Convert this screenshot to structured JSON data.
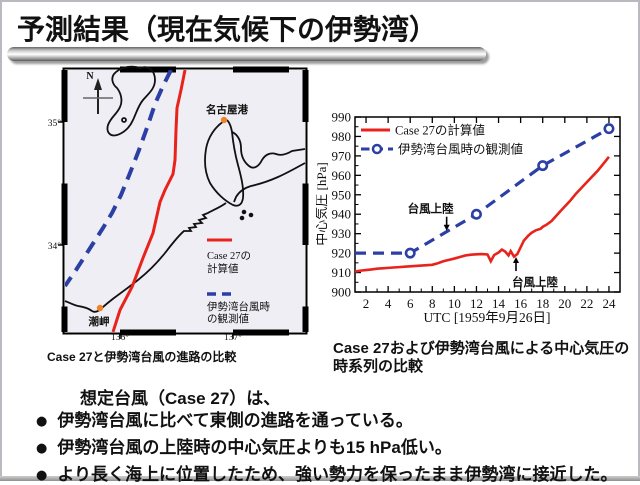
{
  "slide": {
    "title": "予測結果（現在気候下の伊勢湾）",
    "body_heading": "想定台風（Case 27）は、",
    "bullet_glyph": "●",
    "bullets": [
      "伊勢湾台風に比べて東側の進路を通っている。",
      "伊勢湾台風の上陸時の中心気圧よりも15 hPa低い。",
      "より長く海上に位置したため、強い勢力を保ったまま伊勢湾に接近した。"
    ]
  },
  "map": {
    "caption": "Case 27と伊勢湾台風の進路の比較",
    "compass_label": "N",
    "lat_labels": [
      "35°",
      "34°"
    ],
    "lon_labels": [
      "136°",
      "137°"
    ],
    "places": [
      {
        "name": "名古屋港"
      },
      {
        "name": "潮岬"
      }
    ],
    "legend": {
      "case27_line1": "Case 27の",
      "case27_line2": "計算値",
      "observed_line1": "伊勢湾台風時",
      "observed_line2": "の観測値"
    },
    "colors": {
      "case27": "#e8231c",
      "observed": "#2b3fa5",
      "place_marker": "#f08228"
    },
    "tracks": {
      "case27_track": [
        [
          120,
          0
        ],
        [
          116,
          20
        ],
        [
          112,
          38
        ],
        [
          111,
          60
        ],
        [
          110,
          90
        ],
        [
          108,
          104
        ],
        [
          100,
          120
        ],
        [
          95,
          132
        ],
        [
          88,
          163
        ],
        [
          78,
          188
        ],
        [
          67,
          217
        ],
        [
          55,
          240
        ],
        [
          48,
          262
        ]
      ],
      "observed_track": [
        [
          106,
          0
        ],
        [
          98,
          16
        ],
        [
          90,
          34
        ],
        [
          83,
          55
        ],
        [
          74,
          80
        ],
        [
          65,
          103
        ],
        [
          56,
          125
        ],
        [
          47,
          143
        ],
        [
          38,
          158
        ],
        [
          29,
          172
        ],
        [
          20,
          186
        ],
        [
          11,
          200
        ],
        [
          0,
          216
        ]
      ]
    }
  },
  "chart_data": {
    "type": "line",
    "xlabel": "UTC [1959年9月26日]",
    "ylabel": "中心気圧 [hPa]",
    "xlim": [
      1,
      25
    ],
    "ylim": [
      900,
      990
    ],
    "xticks": [
      2,
      4,
      6,
      8,
      10,
      12,
      14,
      16,
      18,
      20,
      22,
      24
    ],
    "yticks": [
      900,
      910,
      920,
      930,
      940,
      950,
      960,
      970,
      980,
      990
    ],
    "grid": false,
    "legend_position": "top-left",
    "series": [
      {
        "name": "Case 27の計算値",
        "color": "#e8231c",
        "style": "solid",
        "x": [
          1,
          1.5,
          2,
          2.5,
          3,
          3.5,
          4,
          4.5,
          5,
          5.5,
          6,
          6.5,
          7,
          7.5,
          8,
          8.5,
          9,
          9.5,
          10,
          10.5,
          11,
          11.5,
          12,
          12.5,
          13,
          13.3,
          13.6,
          14,
          14.3,
          14.6,
          14.9,
          15.1,
          15.4,
          15.7,
          16,
          16.3,
          16.7,
          17,
          17.4,
          17.8,
          18,
          18.4,
          18.8,
          19.2,
          19.6,
          20,
          20.5,
          21,
          21.5,
          22,
          22.5,
          23,
          23.5,
          24
        ],
        "y": [
          910.5,
          911,
          911.3,
          911.6,
          912,
          912.2,
          912.4,
          912.6,
          912.8,
          913,
          913.2,
          913.4,
          913.6,
          913.8,
          914,
          914.8,
          915.8,
          916.5,
          917.2,
          918,
          918.8,
          919.2,
          919.4,
          919.5,
          919.3,
          915.8,
          919,
          920.3,
          921.8,
          920.8,
          918.8,
          921,
          918.2,
          919.5,
          923,
          926.5,
          929,
          930.5,
          931.8,
          932.5,
          933.5,
          934.8,
          936.5,
          939,
          941.5,
          944,
          947,
          950.5,
          953.5,
          956.5,
          959.5,
          962.5,
          966,
          969.5
        ]
      },
      {
        "name": "伊勢湾台風時の観測値",
        "color": "#2b3fa5",
        "style": "dashed",
        "marker": "circle",
        "x": [
          1,
          6,
          12,
          18,
          24
        ],
        "y": [
          920,
          920,
          940,
          965,
          984
        ],
        "marker_x": [
          6,
          12,
          18,
          24
        ],
        "marker_y": [
          920,
          940,
          965,
          984
        ]
      }
    ],
    "annotations": [
      {
        "text": "台風上陸",
        "x": 9.3,
        "y": 931,
        "dir": "down"
      },
      {
        "text": "台風上陸",
        "x": 15.4,
        "y": 919,
        "dir": "up"
      }
    ],
    "caption": "Case 27および伊勢湾台風による中心気圧の時系列の比較"
  }
}
